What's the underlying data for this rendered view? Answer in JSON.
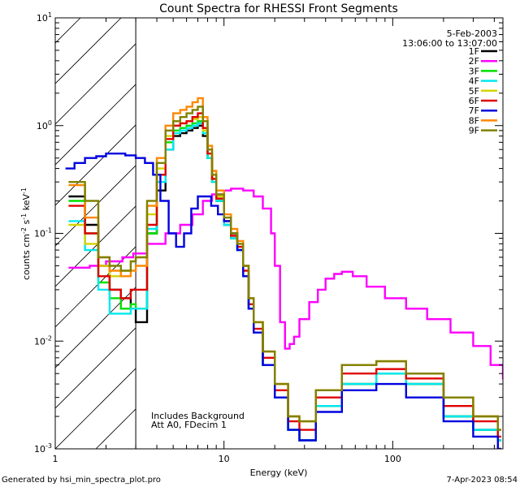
{
  "chart_data": {
    "type": "line",
    "title": "Count Spectra for RHESSI Front Segments",
    "xlabel": "Energy (keV)",
    "ylabel": "counts cm",
    "ylabel_sup1": "-2",
    "ylabel_mid": " s",
    "ylabel_sup2": "-1",
    "ylabel_end": " keV",
    "ylabel_sup3": "-1",
    "x_scale": "log",
    "y_scale": "log",
    "xlim": [
      1,
      450
    ],
    "ylim": [
      0.001,
      10
    ],
    "x_ticks": [
      {
        "value": 1,
        "label": "1"
      },
      {
        "value": 10,
        "label": "10"
      },
      {
        "value": 100,
        "label": "100"
      }
    ],
    "y_ticks": [
      {
        "exp": -3,
        "label_base": "10",
        "label_exp": "-3"
      },
      {
        "exp": -2,
        "label_base": "10",
        "label_exp": "-2"
      },
      {
        "exp": -1,
        "label_base": "10",
        "label_exp": "-1"
      },
      {
        "exp": 0,
        "label_base": "10",
        "label_exp": "0"
      },
      {
        "exp": 1,
        "label_base": "10",
        "label_exp": "1"
      }
    ],
    "hatched_region_x": [
      1,
      3
    ],
    "legend_position": "top-right",
    "date": "5-Feb-2003",
    "time_range": "13:06:00 to 13:07:00",
    "annotation_line1": "Includes Background",
    "annotation_line2": "Att A0, FDecim 1",
    "series": [
      {
        "name": "1F",
        "color": "#000000",
        "x": [
          1.2,
          1.5,
          1.8,
          2.1,
          2.45,
          2.8,
          3.0,
          3.5,
          4.0,
          4.5,
          5.0,
          5.5,
          6.0,
          6.5,
          7.0,
          7.5,
          8.0,
          8.5,
          9.0,
          10.0,
          11.0,
          12.0,
          13.0,
          14.0,
          15.0,
          17.0,
          20.0,
          24.0,
          28.0,
          35.0,
          50.0,
          80.0,
          120.0,
          200.0,
          300.0,
          420.0
        ],
        "values": [
          0.22,
          0.12,
          0.05,
          0.03,
          0.025,
          0.02,
          0.015,
          0.1,
          0.25,
          0.6,
          0.8,
          0.85,
          0.9,
          0.95,
          1.0,
          0.8,
          0.5,
          0.3,
          0.2,
          0.12,
          0.09,
          0.07,
          0.04,
          0.02,
          0.012,
          0.006,
          0.003,
          0.0015,
          0.0012,
          0.0025,
          0.004,
          0.005,
          0.004,
          0.002,
          0.0015,
          0.0012
        ]
      },
      {
        "name": "2F",
        "color": "#ff00ff",
        "x": [
          1.2,
          1.6,
          2.0,
          2.5,
          2.9,
          3.5,
          4.5,
          5.5,
          6.5,
          7.5,
          8.5,
          10.0,
          11.0,
          12.0,
          13.0,
          15.0,
          17.0,
          19.0,
          20.0,
          21.5,
          23.0,
          24.5,
          26.0,
          28.0,
          32.0,
          36.0,
          40.0,
          45.0,
          50.0,
          58.0,
          70.0,
          90.0,
          120.0,
          160.0,
          220.0,
          300.0,
          380.0,
          450.0
        ],
        "values": [
          0.048,
          0.05,
          0.055,
          0.06,
          0.065,
          0.08,
          0.1,
          0.12,
          0.15,
          0.2,
          0.23,
          0.25,
          0.26,
          0.26,
          0.25,
          0.22,
          0.17,
          0.1,
          0.05,
          0.015,
          0.0085,
          0.0094,
          0.011,
          0.016,
          0.023,
          0.03,
          0.038,
          0.042,
          0.044,
          0.04,
          0.032,
          0.025,
          0.02,
          0.016,
          0.012,
          0.009,
          0.006,
          0.0045
        ]
      },
      {
        "name": "3F",
        "color": "#00e000",
        "x": [
          1.2,
          1.5,
          1.8,
          2.1,
          2.45,
          2.8,
          3.0,
          3.5,
          4.0,
          4.5,
          5.0,
          5.5,
          6.0,
          6.5,
          7.0,
          7.5,
          8.0,
          8.5,
          9.0,
          10.0,
          11.0,
          12.0,
          13.0,
          14.0,
          15.0,
          17.0,
          20.0,
          24.0,
          28.0,
          35.0,
          50.0,
          80.0,
          120.0,
          200.0,
          300.0,
          420.0
        ],
        "values": [
          0.2,
          0.1,
          0.035,
          0.025,
          0.02,
          0.022,
          0.02,
          0.1,
          0.35,
          0.7,
          0.9,
          0.95,
          1.0,
          1.05,
          1.1,
          0.85,
          0.5,
          0.3,
          0.2,
          0.13,
          0.09,
          0.07,
          0.04,
          0.02,
          0.012,
          0.006,
          0.003,
          0.0015,
          0.0012,
          0.0025,
          0.004,
          0.005,
          0.004,
          0.002,
          0.0015,
          0.0012
        ]
      },
      {
        "name": "4F",
        "color": "#00e8f0",
        "x": [
          1.2,
          1.5,
          1.8,
          2.1,
          2.45,
          2.8,
          3.0,
          3.5,
          4.0,
          4.5,
          5.0,
          5.5,
          6.0,
          6.5,
          7.0,
          7.5,
          8.0,
          8.5,
          9.0,
          10.0,
          11.0,
          12.0,
          13.0,
          14.0,
          15.0,
          17.0,
          20.0,
          24.0,
          28.0,
          35.0,
          50.0,
          80.0,
          120.0,
          200.0,
          300.0,
          420.0
        ],
        "values": [
          0.13,
          0.07,
          0.03,
          0.018,
          0.018,
          0.02,
          0.02,
          0.11,
          0.3,
          0.6,
          0.85,
          0.9,
          0.95,
          1.0,
          1.05,
          0.85,
          0.5,
          0.3,
          0.2,
          0.12,
          0.09,
          0.07,
          0.04,
          0.02,
          0.012,
          0.006,
          0.003,
          0.0015,
          0.0012,
          0.0025,
          0.004,
          0.005,
          0.004,
          0.002,
          0.0015,
          0.0012
        ]
      },
      {
        "name": "5F",
        "color": "#d4d400",
        "x": [
          1.2,
          1.5,
          1.8,
          2.1,
          2.45,
          2.8,
          3.0,
          3.5,
          4.0,
          4.5,
          5.0,
          5.5,
          6.0,
          6.5,
          7.0,
          7.5,
          8.0,
          8.5,
          9.0,
          10.0,
          11.0,
          12.0,
          13.0,
          14.0,
          15.0,
          17.0,
          20.0,
          24.0,
          28.0,
          35.0,
          50.0,
          80.0,
          120.0,
          200.0,
          300.0,
          420.0
        ],
        "values": [
          0.12,
          0.08,
          0.05,
          0.04,
          0.045,
          0.055,
          0.06,
          0.15,
          0.4,
          0.8,
          1.0,
          1.05,
          1.1,
          1.15,
          1.2,
          0.9,
          0.55,
          0.32,
          0.22,
          0.14,
          0.1,
          0.08,
          0.05,
          0.025,
          0.015,
          0.008,
          0.004,
          0.002,
          0.0018,
          0.0035,
          0.006,
          0.0065,
          0.005,
          0.003,
          0.002,
          0.0015
        ]
      },
      {
        "name": "6F",
        "color": "#e00000",
        "x": [
          1.2,
          1.5,
          1.8,
          2.1,
          2.45,
          2.8,
          3.0,
          3.5,
          4.0,
          4.5,
          5.0,
          5.5,
          6.0,
          6.5,
          7.0,
          7.5,
          8.0,
          8.5,
          9.0,
          10.0,
          11.0,
          12.0,
          13.0,
          14.0,
          15.0,
          17.0,
          20.0,
          24.0,
          28.0,
          35.0,
          50.0,
          80.0,
          120.0,
          200.0,
          300.0,
          420.0
        ],
        "values": [
          0.18,
          0.1,
          0.04,
          0.03,
          0.025,
          0.03,
          0.03,
          0.12,
          0.35,
          0.75,
          1.0,
          1.05,
          1.1,
          1.2,
          1.3,
          0.95,
          0.55,
          0.32,
          0.21,
          0.13,
          0.095,
          0.075,
          0.045,
          0.022,
          0.013,
          0.007,
          0.0035,
          0.0018,
          0.0015,
          0.003,
          0.005,
          0.0055,
          0.0045,
          0.0025,
          0.0018,
          0.0013
        ]
      },
      {
        "name": "7F",
        "color": "#0000e0",
        "x": [
          1.15,
          1.3,
          1.5,
          1.75,
          2.0,
          2.3,
          2.6,
          3.0,
          3.4,
          3.8,
          4.2,
          4.7,
          5.2,
          5.8,
          6.4,
          7.0,
          7.7,
          8.4,
          9.2,
          10.0,
          11.0,
          12.0,
          13.0,
          14.0,
          15.0,
          17.0,
          20.0,
          24.0,
          28.0,
          35.0,
          50.0,
          80.0,
          120.0,
          200.0,
          300.0,
          420.0
        ],
        "values": [
          0.4,
          0.45,
          0.5,
          0.52,
          0.55,
          0.55,
          0.53,
          0.5,
          0.45,
          0.35,
          0.2,
          0.1,
          0.075,
          0.1,
          0.17,
          0.22,
          0.22,
          0.18,
          0.15,
          0.13,
          0.1,
          0.07,
          0.04,
          0.02,
          0.012,
          0.006,
          0.003,
          0.0015,
          0.0012,
          0.0022,
          0.0035,
          0.004,
          0.003,
          0.0018,
          0.0013,
          0.001
        ]
      },
      {
        "name": "8F",
        "color": "#ff8800",
        "x": [
          1.2,
          1.5,
          1.8,
          2.1,
          2.45,
          2.8,
          3.0,
          3.5,
          4.0,
          4.5,
          5.0,
          5.5,
          6.0,
          6.5,
          7.0,
          7.5,
          8.0,
          8.5,
          9.0,
          10.0,
          11.0,
          12.0,
          13.0,
          14.0,
          15.0,
          17.0,
          20.0,
          24.0,
          28.0,
          35.0,
          50.0,
          80.0,
          120.0,
          200.0,
          300.0,
          420.0
        ],
        "values": [
          0.28,
          0.14,
          0.06,
          0.045,
          0.04,
          0.045,
          0.05,
          0.18,
          0.5,
          1.0,
          1.3,
          1.4,
          1.5,
          1.65,
          1.8,
          1.2,
          0.65,
          0.38,
          0.25,
          0.15,
          0.11,
          0.085,
          0.05,
          0.025,
          0.015,
          0.008,
          0.004,
          0.002,
          0.0018,
          0.0035,
          0.006,
          0.0065,
          0.005,
          0.003,
          0.002,
          0.0015
        ]
      },
      {
        "name": "9F",
        "color": "#808000",
        "x": [
          1.2,
          1.5,
          1.8,
          2.1,
          2.45,
          2.8,
          3.0,
          3.5,
          4.0,
          4.5,
          5.0,
          5.5,
          6.0,
          6.5,
          7.0,
          7.5,
          8.0,
          8.5,
          9.0,
          10.0,
          11.0,
          12.0,
          13.0,
          14.0,
          15.0,
          17.0,
          20.0,
          24.0,
          28.0,
          35.0,
          50.0,
          80.0,
          120.0,
          200.0,
          300.0,
          420.0
        ],
        "values": [
          0.3,
          0.2,
          0.06,
          0.05,
          0.045,
          0.055,
          0.06,
          0.2,
          0.45,
          0.9,
          1.1,
          1.2,
          1.3,
          1.4,
          1.5,
          1.1,
          0.6,
          0.35,
          0.23,
          0.14,
          0.1,
          0.08,
          0.05,
          0.025,
          0.015,
          0.008,
          0.004,
          0.002,
          0.0018,
          0.0035,
          0.006,
          0.0065,
          0.005,
          0.003,
          0.002,
          0.0015
        ]
      }
    ]
  },
  "footer": {
    "generated_by": "Generated by hsi_min_spectra_plot.pro",
    "timestamp": "7-Apr-2023 08:54"
  }
}
